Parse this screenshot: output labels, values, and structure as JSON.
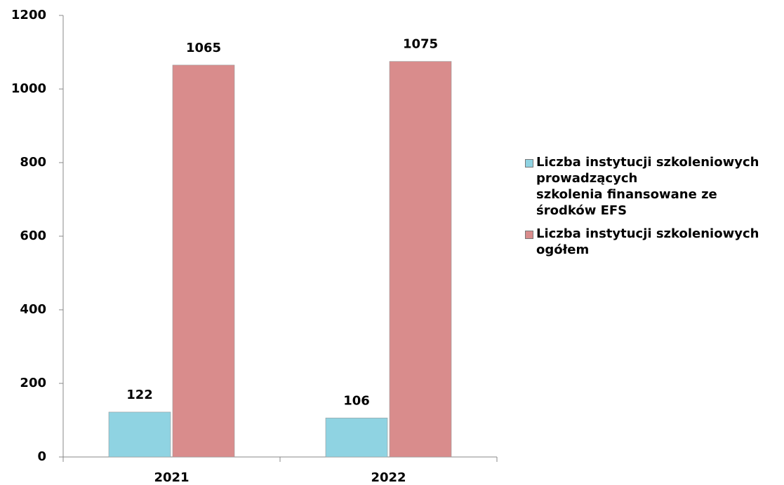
{
  "chart_data": {
    "type": "bar",
    "categories": [
      "2021",
      "2022"
    ],
    "series": [
      {
        "name": "Liczba instytucji szkoleniowych\nprowadzących\nszkolenia finansowane ze\nśrodków EFS",
        "color": "#8fd3e2",
        "values": [
          122,
          106
        ]
      },
      {
        "name": "Liczba instytucji szkoleniowych\nogółem",
        "color": "#d98c8c",
        "values": [
          1065,
          1075
        ]
      }
    ],
    "ylim": [
      0,
      1200
    ],
    "yticks": [
      0,
      200,
      400,
      600,
      800,
      1000,
      1200
    ],
    "grid": false,
    "legend": "right"
  }
}
